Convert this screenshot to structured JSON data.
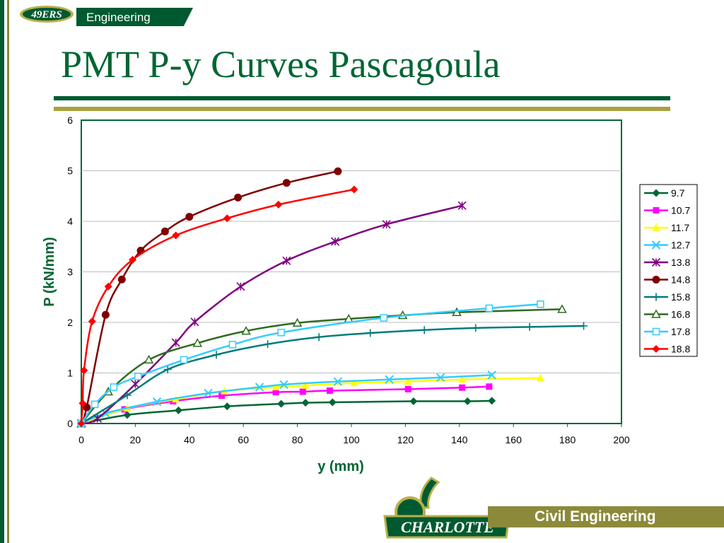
{
  "header": {
    "logo_text": "49ERS",
    "banner_label": "Engineering"
  },
  "title": "PMT P-y Curves Pascagoula",
  "footer": {
    "logo_text": "CHARLOTTE",
    "banner_label": "Civil Engineering"
  },
  "chart_data": {
    "type": "line",
    "title": "",
    "xlabel": "y (mm)",
    "ylabel": "P (kN/mm)",
    "xlim": [
      0,
      200
    ],
    "ylim": [
      0,
      6
    ],
    "xticks": [
      "0",
      "20",
      "40",
      "60",
      "80",
      "100",
      "120",
      "140",
      "160",
      "180",
      "200"
    ],
    "yticks": [
      "0",
      "1",
      "2",
      "3",
      "4",
      "5",
      "6"
    ],
    "grid": "horizontal",
    "legend_position": "right",
    "series": [
      {
        "name": "9.7",
        "color": "#006633",
        "marker": "diamond",
        "x": [
          0,
          17,
          36,
          54,
          74,
          83,
          93,
          123,
          143,
          152
        ],
        "y": [
          0,
          0.17,
          0.26,
          0.34,
          0.39,
          0.41,
          0.42,
          0.44,
          0.44,
          0.45
        ]
      },
      {
        "name": "10.7",
        "color": "#ff00ff",
        "marker": "square",
        "x": [
          0,
          16,
          34,
          52,
          72,
          82,
          92,
          121,
          141,
          151
        ],
        "y": [
          0,
          0.28,
          0.44,
          0.55,
          0.62,
          0.63,
          0.65,
          0.68,
          0.71,
          0.73
        ]
      },
      {
        "name": "11.7",
        "color": "#ffff00",
        "marker": "triangle",
        "x": [
          0,
          17,
          35,
          53,
          72,
          83,
          101,
          121,
          141,
          170
        ],
        "y": [
          0,
          0.3,
          0.48,
          0.64,
          0.72,
          0.75,
          0.8,
          0.83,
          0.87,
          0.9
        ]
      },
      {
        "name": "12.7",
        "color": "#33ccff",
        "marker": "x",
        "x": [
          0,
          9,
          28,
          47,
          66,
          75,
          95,
          114,
          133,
          152
        ],
        "y": [
          0,
          0.2,
          0.43,
          0.6,
          0.72,
          0.77,
          0.83,
          0.87,
          0.91,
          0.96
        ]
      },
      {
        "name": "13.8",
        "color": "#7f007f",
        "marker": "star",
        "x": [
          0,
          6,
          20,
          35,
          42,
          59,
          76,
          94,
          113,
          141
        ],
        "y": [
          0,
          0.1,
          0.78,
          1.6,
          2.01,
          2.71,
          3.22,
          3.6,
          3.94,
          4.31
        ]
      },
      {
        "name": "14.8",
        "color": "#800000",
        "marker": "circle",
        "x": [
          0,
          2,
          9,
          15,
          22,
          31,
          40,
          58,
          76,
          95
        ],
        "y": [
          0,
          0.32,
          2.15,
          2.85,
          3.42,
          3.8,
          4.09,
          4.47,
          4.76,
          4.99
        ]
      },
      {
        "name": "15.8",
        "color": "#007b7b",
        "marker": "plus",
        "x": [
          0,
          17,
          32,
          50,
          69,
          88,
          107,
          127,
          146,
          166,
          186
        ],
        "y": [
          0,
          0.56,
          1.07,
          1.36,
          1.57,
          1.71,
          1.79,
          1.85,
          1.89,
          1.91,
          1.93
        ]
      },
      {
        "name": "16.8",
        "color": "#2e6b1f",
        "marker": "triangle-open",
        "x": [
          0,
          10,
          25,
          43,
          61,
          80,
          99,
          119,
          139,
          178
        ],
        "y": [
          0,
          0.63,
          1.26,
          1.59,
          1.83,
          1.99,
          2.07,
          2.14,
          2.2,
          2.26
        ]
      },
      {
        "name": "17.8",
        "color": "#33ccff",
        "marker": "square-open",
        "x": [
          0,
          5,
          12,
          21,
          38,
          56,
          74,
          112,
          151,
          170
        ],
        "y": [
          0,
          0.38,
          0.72,
          0.93,
          1.26,
          1.56,
          1.8,
          2.09,
          2.28,
          2.36
        ]
      },
      {
        "name": "18.8",
        "color": "#ff0000",
        "marker": "diamond",
        "x": [
          0,
          0.5,
          1,
          4,
          10,
          19,
          35,
          54,
          73,
          101
        ],
        "y": [
          0,
          0.4,
          1.05,
          2.02,
          2.71,
          3.24,
          3.72,
          4.06,
          4.33,
          4.63
        ]
      }
    ]
  }
}
